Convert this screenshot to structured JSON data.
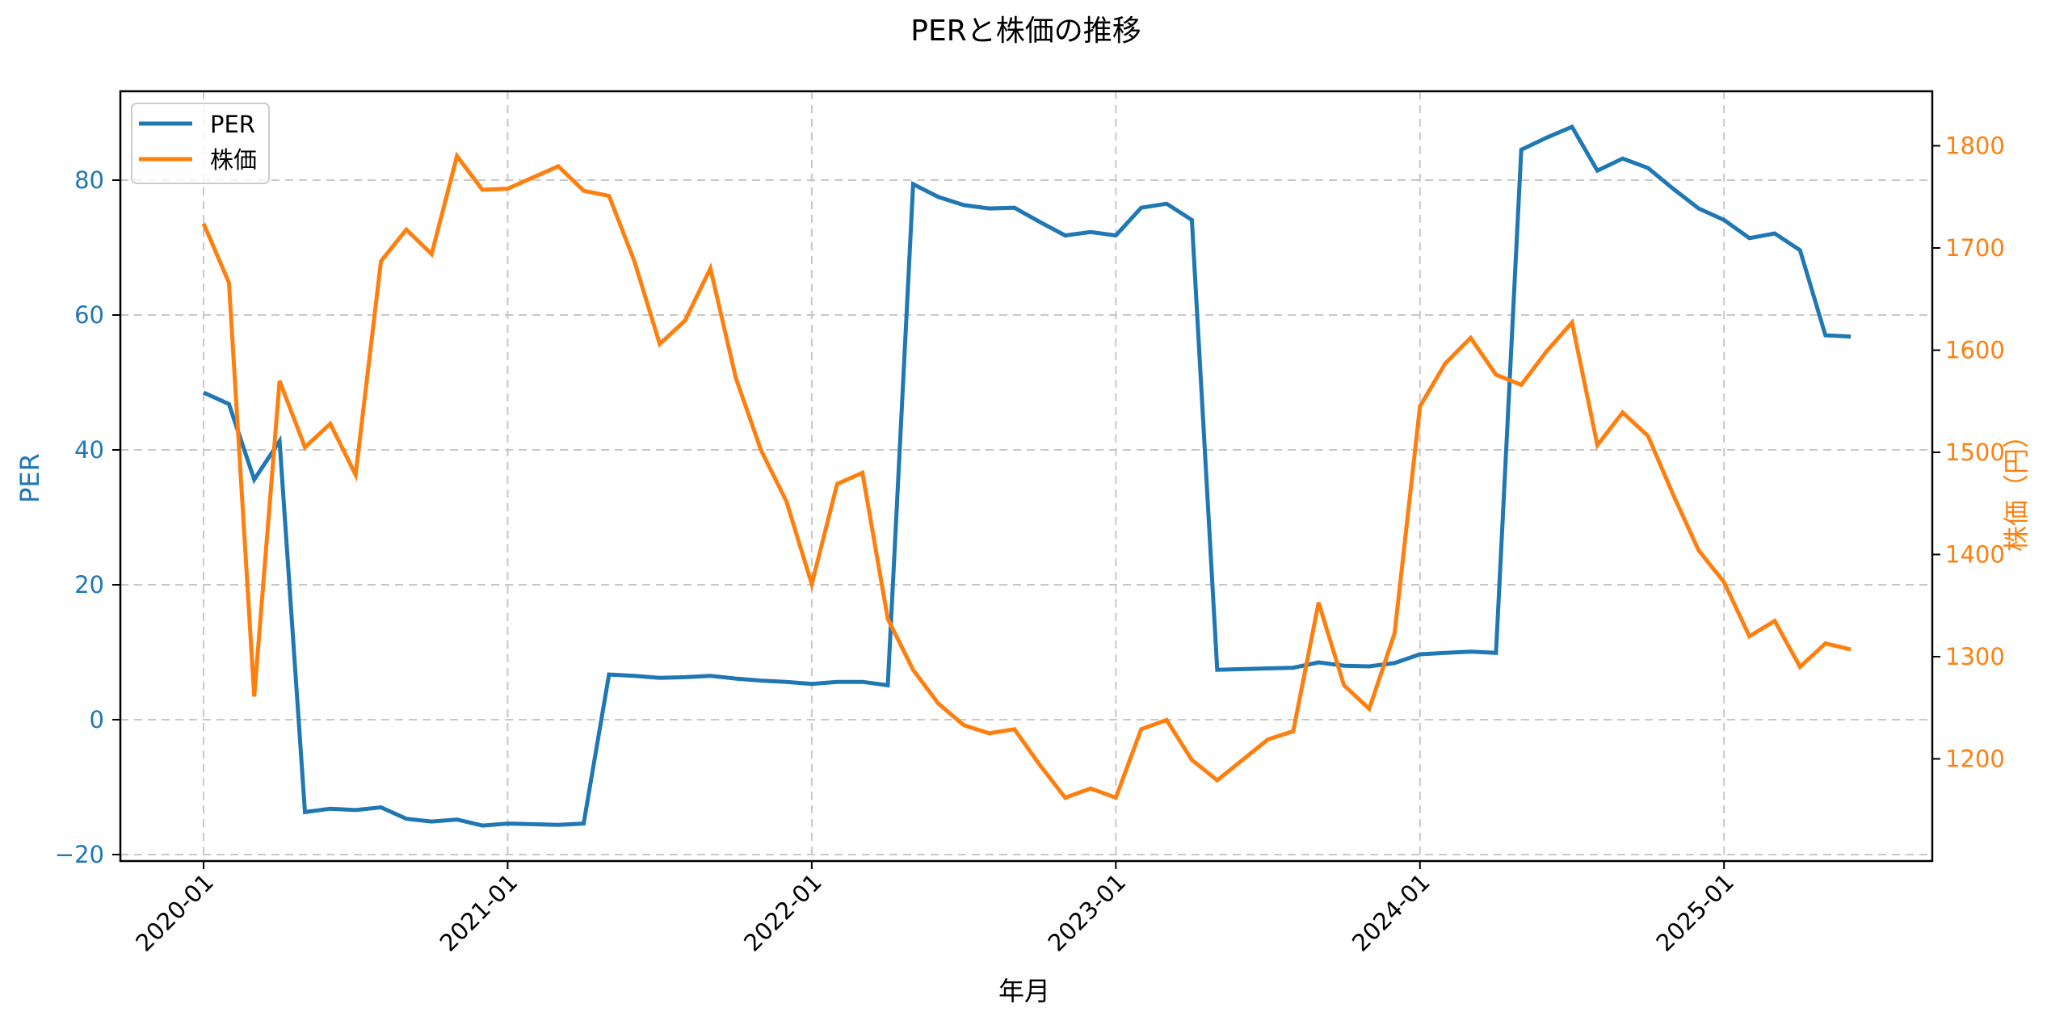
{
  "title": "PERと株価の推移",
  "chart_data": {
    "type": "line",
    "title": "PERと株価の推移",
    "xlabel": "年月",
    "ylabel": "PER",
    "ylabel_right": "株価（円）",
    "grid": true,
    "legend_position": "upper left",
    "x": [
      "2020-01",
      "2020-02",
      "2020-03",
      "2020-04",
      "2020-05",
      "2020-06",
      "2020-07",
      "2020-08",
      "2020-09",
      "2020-10",
      "2020-11",
      "2020-12",
      "2021-01",
      "2021-02",
      "2021-03",
      "2021-04",
      "2021-05",
      "2021-06",
      "2021-07",
      "2021-08",
      "2021-09",
      "2021-10",
      "2021-11",
      "2021-12",
      "2022-01",
      "2022-02",
      "2022-03",
      "2022-04",
      "2022-05",
      "2022-06",
      "2022-07",
      "2022-08",
      "2022-09",
      "2022-10",
      "2022-11",
      "2022-12",
      "2023-01",
      "2023-02",
      "2023-03",
      "2023-04",
      "2023-05",
      "2023-06",
      "2023-07",
      "2023-08",
      "2023-09",
      "2023-10",
      "2023-11",
      "2023-12",
      "2024-01",
      "2024-02",
      "2024-03",
      "2024-04",
      "2024-05",
      "2024-06",
      "2024-07",
      "2024-08",
      "2024-09",
      "2024-10",
      "2024-11",
      "2024-12",
      "2025-01",
      "2025-02",
      "2025-03",
      "2025-04",
      "2025-05",
      "2025-06"
    ],
    "xticks": [
      "2020-01",
      "2021-01",
      "2022-01",
      "2023-01",
      "2024-01",
      "2025-01"
    ],
    "series": [
      {
        "name": "PER",
        "axis": "left",
        "color": "#1f77b4",
        "values": [
          48.5,
          46.8,
          35.6,
          41.3,
          -13.7,
          -13.2,
          -13.4,
          -13.0,
          -14.7,
          -15.1,
          -14.8,
          -15.7,
          -15.4,
          -15.5,
          -15.6,
          -15.4,
          6.7,
          6.5,
          6.2,
          6.3,
          6.5,
          6.1,
          5.8,
          5.6,
          5.3,
          5.6,
          5.6,
          5.1,
          79.4,
          77.5,
          76.3,
          75.8,
          75.9,
          73.8,
          71.8,
          72.3,
          71.8,
          75.9,
          76.5,
          74.1,
          7.4,
          7.5,
          7.6,
          7.7,
          8.5,
          8.0,
          7.9,
          8.4,
          9.7,
          9.9,
          10.1,
          9.9,
          84.5,
          86.3,
          87.9,
          81.4,
          83.2,
          81.8,
          78.7,
          75.8,
          74.1,
          71.4,
          72.1,
          69.6,
          57.0,
          56.8
        ]
      },
      {
        "name": "株価",
        "axis": "right",
        "color": "#ff7f0e",
        "values": [
          1724,
          1666,
          1261,
          1570,
          1505,
          1528,
          1478,
          1687,
          1718,
          1694,
          1790,
          1757,
          1758,
          1769,
          1780,
          1756,
          1751,
          1687,
          1606,
          1629,
          1680,
          1573,
          1502,
          1452,
          1371,
          1469,
          1480,
          1337,
          1287,
          1254,
          1233,
          1225,
          1229,
          1194,
          1162,
          1171,
          1162,
          1229,
          1238,
          1199,
          1179,
          1199,
          1219,
          1227,
          1353,
          1272,
          1249,
          1323,
          1545,
          1587,
          1612,
          1576,
          1566,
          1599,
          1627,
          1507,
          1539,
          1516,
          1458,
          1404,
          1373,
          1320,
          1335,
          1290,
          1313,
          1307
        ]
      }
    ],
    "left_axis": {
      "ylim": [
        -21,
        93
      ],
      "ticks": [
        -20,
        0,
        20,
        40,
        60,
        80
      ],
      "color": "#1f77b4"
    },
    "right_axis": {
      "ylim": [
        1127,
        1841
      ],
      "ticks": [
        1200,
        1300,
        1400,
        1500,
        1600,
        1700,
        1800
      ],
      "color": "#ff7f0e"
    }
  },
  "legend": {
    "items": [
      {
        "label": "PER",
        "color": "#1f77b4"
      },
      {
        "label": "株価",
        "color": "#ff7f0e"
      }
    ]
  }
}
